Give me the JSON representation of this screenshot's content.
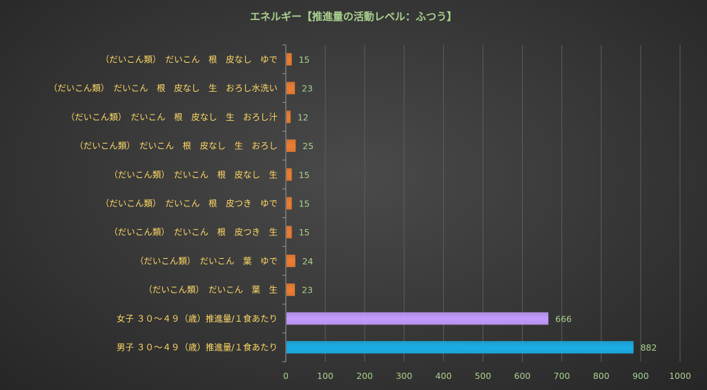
{
  "chart_data": {
    "type": "bar",
    "orientation": "horizontal",
    "title": "エネルギー【推進量の活動レベル：ふつう】",
    "categories": [
      "（だいこん類）　だいこん　根　皮なし　ゆで",
      "（だいこん類）　だいこん　根　皮なし　生　おろし水洗い",
      "（だいこん類）　だいこん　根　皮なし　生　おろし汁",
      "（だいこん類）　だいこん　根　皮なし　生　おろし",
      "（だいこん類）　だいこん　根　皮なし　生",
      "（だいこん類）　だいこん　根　皮つき　ゆで",
      "（だいこん類）　だいこん　根　皮つき　生",
      "（だいこん類）　だいこん　葉　ゆで",
      "（だいこん類）　だいこん　葉　生",
      "女子 ３０～４９（歳）推進量/１食あたり",
      "男子 ３０～４９（歳）推進量/１食あたり"
    ],
    "values": [
      15,
      23,
      12,
      25,
      15,
      15,
      15,
      24,
      23,
      666,
      882
    ],
    "value_labels": [
      "15",
      "23",
      "12",
      "25",
      "15",
      "15",
      "15",
      "24",
      "23",
      "666",
      "882"
    ],
    "bar_colors": [
      "#ed7d31",
      "#ed7d31",
      "#ed7d31",
      "#ed7d31",
      "#ed7d31",
      "#ed7d31",
      "#ed7d31",
      "#ed7d31",
      "#ed7d31",
      "#c39bff",
      "#1aaee6"
    ],
    "xlim": [
      0,
      1000
    ],
    "x_ticks": [
      0,
      100,
      200,
      300,
      400,
      500,
      600,
      700,
      800,
      900,
      1000
    ],
    "x_tick_labels": [
      "0",
      "100",
      "200",
      "300",
      "400",
      "500",
      "600",
      "700",
      "800",
      "900",
      "1000"
    ],
    "grid": true,
    "legend": "none",
    "colors": {
      "title": "#a9d18e",
      "category_labels": "#ffd966",
      "tick_labels": "#a9d18e",
      "data_labels": "#a9d18e",
      "gridlines": "#5e5e5e"
    }
  }
}
